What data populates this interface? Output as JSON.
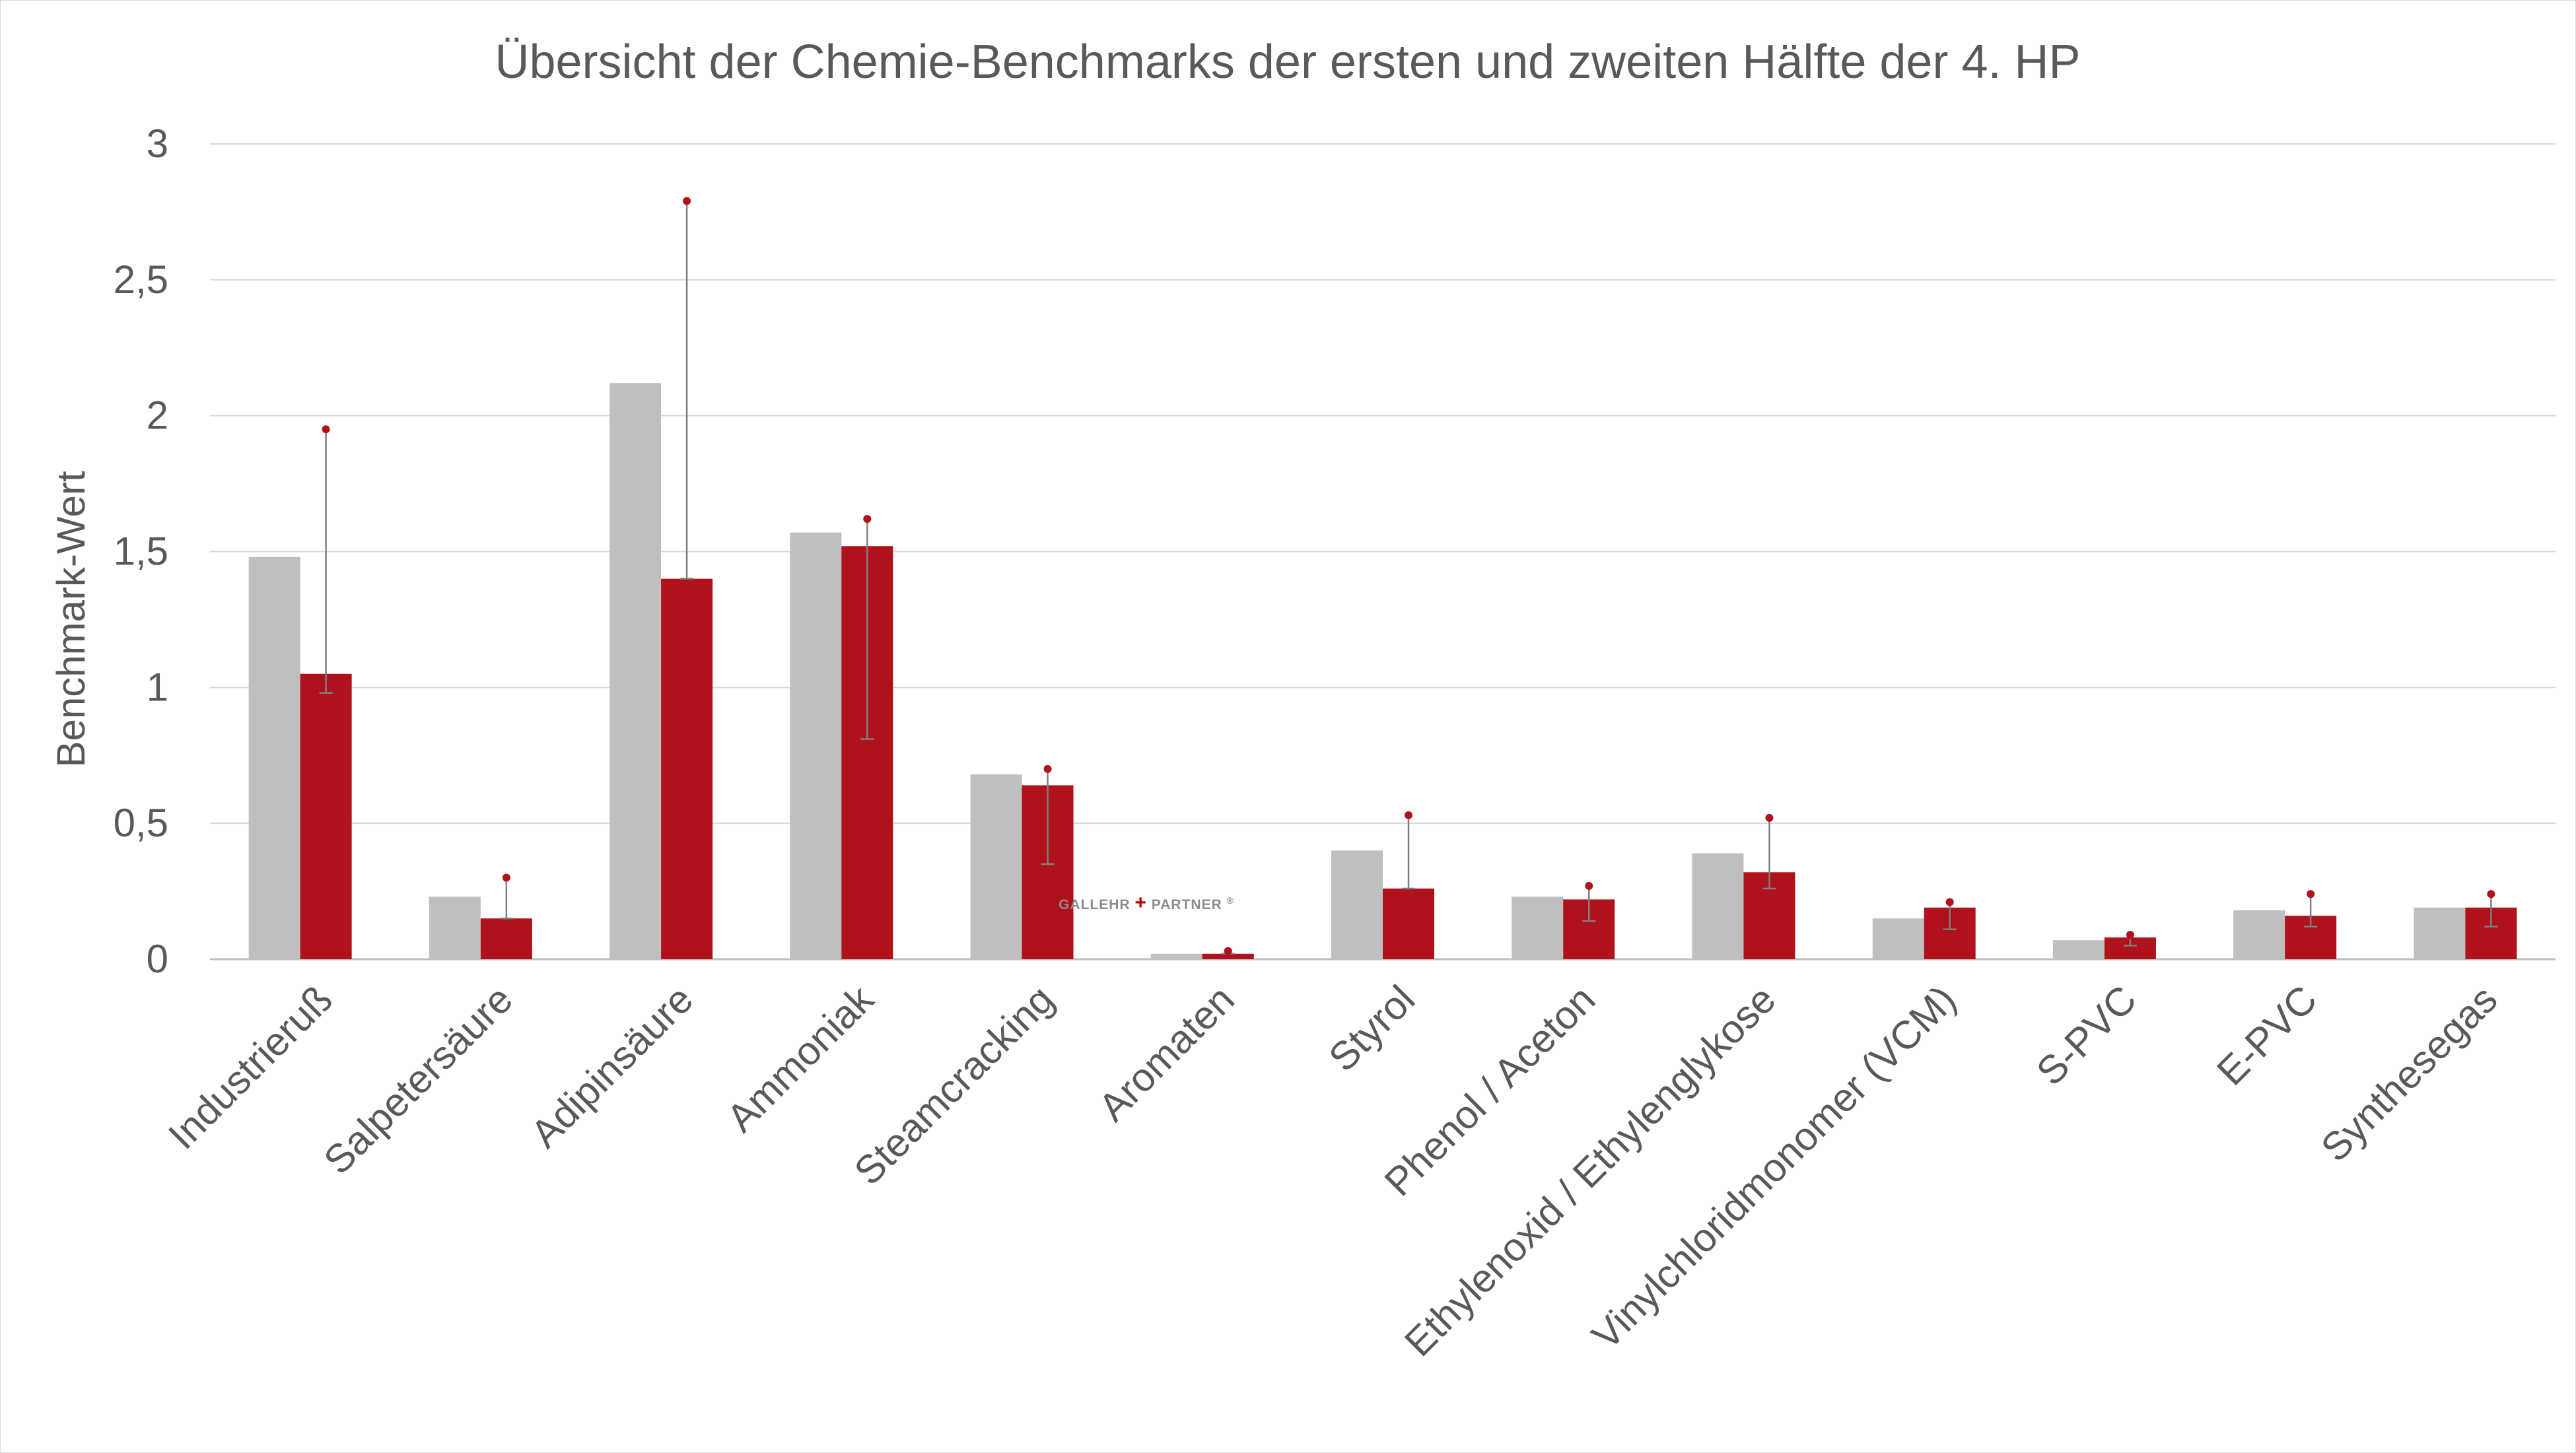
{
  "chart_data": {
    "type": "bar",
    "title": "Übersicht der Chemie-Benchmarks der ersten und zweiten Hälfte der 4. HP",
    "ylabel": "Benchmark-Wert",
    "xlabel": "",
    "ylim": [
      0,
      3
    ],
    "yticks": [
      0,
      0.5,
      1,
      1.5,
      2,
      2.5,
      3
    ],
    "ytick_labels": [
      "0",
      "0,5",
      "1",
      "1,5",
      "2",
      "2,5",
      "3"
    ],
    "grid": true,
    "legend": "none",
    "categories": [
      "Industrieruß",
      "Salpetersäure",
      "Adipinsäure",
      "Ammoniak",
      "Steamcracking",
      "Aromaten",
      "Styrol",
      "Phenol / Aceton",
      "Ethylenoxid / Ethylenglykose",
      "Vinylchloridmonomer (VCM)",
      "S-PVC",
      "E-PVC",
      "Synthesegas"
    ],
    "series": [
      {
        "color": "#bfbfbf",
        "values": [
          1.48,
          0.23,
          2.12,
          1.57,
          0.68,
          0.02,
          0.4,
          0.23,
          0.39,
          0.15,
          0.07,
          0.18,
          0.19
        ]
      },
      {
        "color": "#b0121b",
        "values": [
          1.05,
          0.15,
          1.4,
          1.52,
          0.64,
          0.02,
          0.26,
          0.22,
          0.32,
          0.19,
          0.08,
          0.16,
          0.19
        ],
        "error_low": [
          0.98,
          0.15,
          1.4,
          0.81,
          0.35,
          0.02,
          0.26,
          0.14,
          0.26,
          0.11,
          0.05,
          0.12,
          0.12
        ],
        "error_high": [
          1.95,
          0.3,
          2.79,
          1.62,
          0.7,
          0.03,
          0.53,
          0.27,
          0.52,
          0.21,
          0.09,
          0.24,
          0.24
        ]
      }
    ]
  },
  "watermark": {
    "left_text": "GALLEHR",
    "cross": "+",
    "right_text": "PARTNER",
    "mark": "®",
    "cross_color": "#c00000"
  }
}
